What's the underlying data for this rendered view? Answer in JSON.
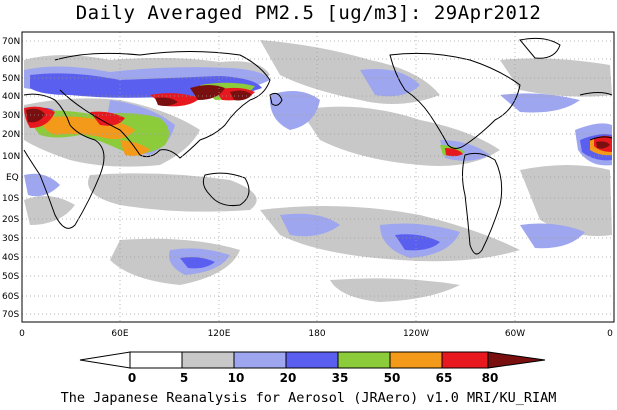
{
  "title": "Daily Averaged PM2.5 [ug/m3]: 29Apr2012",
  "credit": "The Japanese Reanalysis for Aerosol (JRAero) v1.0 MRI/KU_RIAM",
  "axes": {
    "lat_ticks": [
      "70N",
      "60N",
      "50N",
      "40N",
      "30N",
      "20N",
      "10N",
      "EQ",
      "10S",
      "20S",
      "30S",
      "40S",
      "50S",
      "60S",
      "70S"
    ],
    "lon_ticks": [
      "0",
      "60E",
      "120E",
      "180",
      "120W",
      "60W",
      "0"
    ]
  },
  "colorbar": {
    "levels": [
      "0",
      "5",
      "10",
      "20",
      "35",
      "50",
      "65",
      "80"
    ],
    "colors": [
      "#ffffff",
      "#c8c8c8",
      "#9fa6f0",
      "#5a5ff0",
      "#8ccc3a",
      "#f39a1a",
      "#e8191e",
      "#7a0f0f"
    ],
    "under_color": "#ffffff",
    "over_color": "#7a0f0f"
  }
}
